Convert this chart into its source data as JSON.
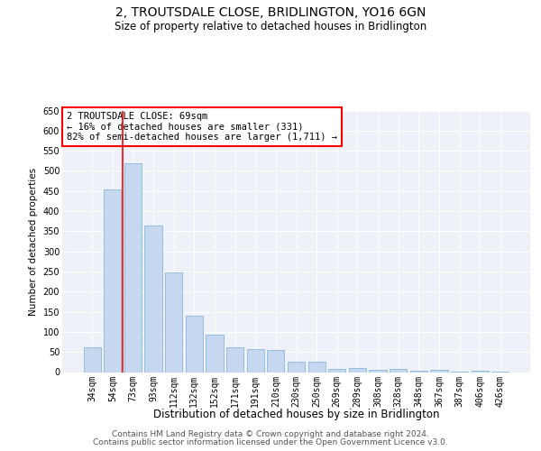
{
  "title": "2, TROUTSDALE CLOSE, BRIDLINGTON, YO16 6GN",
  "subtitle": "Size of property relative to detached houses in Bridlington",
  "xlabel": "Distribution of detached houses by size in Bridlington",
  "ylabel": "Number of detached properties",
  "categories": [
    "34sqm",
    "54sqm",
    "73sqm",
    "93sqm",
    "112sqm",
    "132sqm",
    "152sqm",
    "171sqm",
    "191sqm",
    "210sqm",
    "230sqm",
    "250sqm",
    "269sqm",
    "289sqm",
    "308sqm",
    "328sqm",
    "348sqm",
    "367sqm",
    "387sqm",
    "406sqm",
    "426sqm"
  ],
  "values": [
    62,
    455,
    520,
    365,
    247,
    140,
    93,
    62,
    57,
    55,
    26,
    25,
    8,
    10,
    5,
    8,
    3,
    5,
    2,
    3,
    2
  ],
  "bar_color": "#c5d8f0",
  "bar_edge_color": "#7bafd4",
  "red_line_x": 1.5,
  "annotation_text": "2 TROUTSDALE CLOSE: 69sqm\n← 16% of detached houses are smaller (331)\n82% of semi-detached houses are larger (1,711) →",
  "annotation_box_color": "white",
  "annotation_box_edge_color": "red",
  "ylim": [
    0,
    650
  ],
  "yticks": [
    0,
    50,
    100,
    150,
    200,
    250,
    300,
    350,
    400,
    450,
    500,
    550,
    600,
    650
  ],
  "bg_color": "#eef2f8",
  "grid_color": "white",
  "footer_line1": "Contains HM Land Registry data © Crown copyright and database right 2024.",
  "footer_line2": "Contains public sector information licensed under the Open Government Licence v3.0.",
  "title_fontsize": 10,
  "subtitle_fontsize": 8.5,
  "xlabel_fontsize": 8.5,
  "ylabel_fontsize": 7.5,
  "tick_fontsize": 7,
  "annotation_fontsize": 7.5,
  "footer_fontsize": 6.5
}
